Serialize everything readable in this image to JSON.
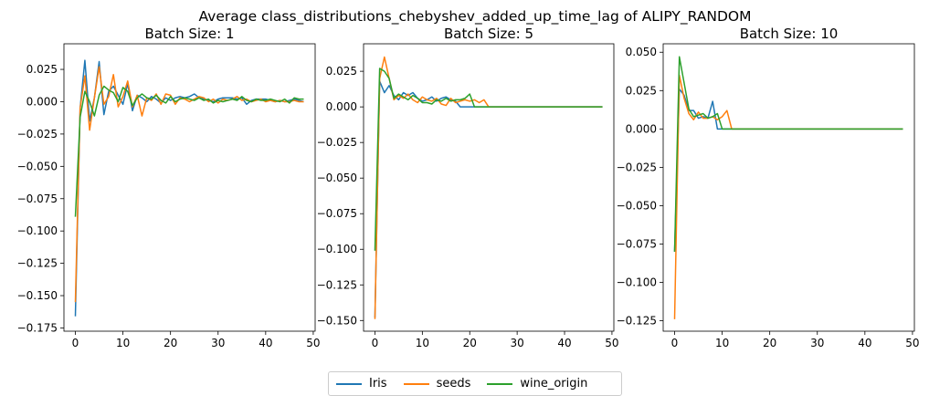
{
  "suptitle": "Average class_distributions_chebyshev_added_up_time_lag of ALIPY_RANDOM",
  "colors": {
    "Iris": "#1f77b4",
    "seeds": "#ff7f0e",
    "wine_origin": "#2ca02c"
  },
  "legend": {
    "placement": "bottom-center",
    "entries": [
      "Iris",
      "seeds",
      "wine_origin"
    ]
  },
  "chart_data": [
    {
      "type": "line",
      "title": "Batch Size: 1",
      "xlim": [
        -2.4,
        50.4
      ],
      "ylim": [
        -0.1775,
        0.0448
      ],
      "xticks": [
        0,
        10,
        20,
        30,
        40,
        50
      ],
      "yticks": [
        -0.175,
        -0.15,
        -0.125,
        -0.1,
        -0.075,
        -0.05,
        -0.025,
        0.0,
        0.025
      ],
      "ytick_labels": [
        "−0.175",
        "−0.150",
        "−0.125",
        "−0.100",
        "−0.075",
        "−0.050",
        "−0.025",
        "0.000",
        "0.025"
      ],
      "series": [
        {
          "name": "Iris",
          "x": [
            0,
            1,
            2,
            3,
            4,
            5,
            6,
            7,
            8,
            9,
            10,
            11,
            12,
            13,
            14,
            15,
            16,
            17,
            18,
            19,
            20,
            21,
            22,
            23,
            24,
            25,
            26,
            27,
            28,
            29,
            30,
            31,
            32,
            33,
            34,
            35,
            36,
            37,
            38,
            39,
            40,
            41,
            42,
            43,
            44,
            45,
            46,
            47,
            48
          ],
          "y": [
            -0.166,
            -0.005,
            0.032,
            -0.015,
            0.003,
            0.031,
            -0.01,
            0.008,
            0.012,
            0.005,
            -0.002,
            0.014,
            -0.007,
            0.005,
            0.003,
            0.0,
            0.004,
            0.002,
            -0.001,
            0.003,
            0.001,
            0.003,
            0.004,
            0.003,
            0.004,
            0.006,
            0.003,
            0.002,
            0.001,
            0.0,
            0.002,
            0.003,
            0.003,
            0.003,
            0.002,
            0.003,
            -0.002,
            0.001,
            0.002,
            0.002,
            0.002,
            0.001,
            0.0,
            0.001,
            0.0,
            0.001,
            0.002,
            0.001,
            0.0
          ]
        },
        {
          "name": "seeds",
          "x": [
            0,
            1,
            2,
            3,
            4,
            5,
            6,
            7,
            8,
            9,
            10,
            11,
            12,
            13,
            14,
            15,
            16,
            17,
            18,
            19,
            20,
            21,
            22,
            23,
            24,
            25,
            26,
            27,
            28,
            29,
            30,
            31,
            32,
            33,
            34,
            35,
            36,
            37,
            38,
            39,
            40,
            41,
            42,
            43,
            44,
            45,
            46,
            47,
            48
          ],
          "y": [
            -0.155,
            -0.005,
            0.02,
            -0.022,
            0.003,
            0.027,
            -0.002,
            0.004,
            0.021,
            -0.004,
            0.004,
            0.016,
            -0.004,
            0.005,
            -0.011,
            0.003,
            0.001,
            0.006,
            -0.002,
            0.006,
            0.005,
            -0.002,
            0.003,
            0.002,
            0.0,
            0.002,
            0.004,
            0.003,
            0.0,
            0.002,
            -0.001,
            0.002,
            0.001,
            0.002,
            0.004,
            0.001,
            0.002,
            0.0,
            0.001,
            0.002,
            0.0,
            0.001,
            0.0,
            0.001,
            0.0,
            0.0,
            0.001,
            0.0,
            0.0
          ]
        },
        {
          "name": "wine_origin",
          "x": [
            0,
            1,
            2,
            3,
            4,
            5,
            6,
            7,
            8,
            9,
            10,
            11,
            12,
            13,
            14,
            15,
            16,
            17,
            18,
            19,
            20,
            21,
            22,
            23,
            24,
            25,
            26,
            27,
            28,
            29,
            30,
            31,
            32,
            33,
            34,
            35,
            36,
            37,
            38,
            39,
            40,
            41,
            42,
            43,
            44,
            45,
            46,
            47,
            48
          ],
          "y": [
            -0.089,
            -0.012,
            0.008,
            0.0,
            -0.011,
            0.005,
            0.012,
            0.009,
            0.007,
            0.0,
            0.011,
            0.008,
            -0.003,
            0.003,
            0.006,
            0.003,
            0.002,
            0.005,
            0.001,
            -0.001,
            0.004,
            0.0,
            0.002,
            0.003,
            0.002,
            0.001,
            0.003,
            0.001,
            0.002,
            -0.001,
            0.001,
            0.0,
            0.001,
            0.002,
            0.001,
            0.004,
            0.001,
            0.0,
            0.002,
            0.001,
            0.001,
            0.002,
            0.001,
            0.0,
            0.002,
            -0.001,
            0.003,
            0.002,
            0.002
          ]
        }
      ]
    },
    {
      "type": "line",
      "title": "Batch Size: 5",
      "xlim": [
        -2.4,
        50.4
      ],
      "ylim": [
        -0.1575,
        0.0443
      ],
      "xticks": [
        0,
        10,
        20,
        30,
        40,
        50
      ],
      "yticks": [
        -0.15,
        -0.125,
        -0.1,
        -0.075,
        -0.05,
        -0.025,
        0.0,
        0.025
      ],
      "ytick_labels": [
        "−0.150",
        "−0.125",
        "−0.100",
        "−0.075",
        "−0.050",
        "−0.025",
        "0.000",
        "0.025"
      ],
      "series": [
        {
          "name": "Iris",
          "x": [
            0,
            1,
            2,
            3,
            4,
            5,
            6,
            7,
            8,
            9,
            10,
            11,
            12,
            13,
            14,
            15,
            16,
            17,
            18,
            19,
            20,
            21,
            22,
            23,
            24,
            25,
            26,
            27,
            28,
            29,
            30,
            31,
            32,
            33,
            34,
            35,
            36,
            37,
            38,
            39,
            40,
            41,
            42,
            43,
            44,
            45,
            46,
            47,
            48
          ],
          "y": [
            -0.148,
            0.018,
            0.01,
            0.015,
            0.008,
            0.005,
            0.01,
            0.008,
            0.01,
            0.006,
            0.004,
            0.005,
            0.007,
            0.004,
            0.006,
            0.007,
            0.005,
            0.004,
            0.0,
            0.0,
            0.0,
            0.0,
            0.0,
            0.0,
            0.0,
            0.0,
            0.0,
            0.0,
            0.0,
            0.0,
            0.0,
            0.0,
            0.0,
            0.0,
            0.0,
            0.0,
            0.0,
            0.0,
            0.0,
            0.0,
            0.0,
            0.0,
            0.0,
            0.0,
            0.0,
            0.0,
            0.0,
            0.0,
            0.0
          ]
        },
        {
          "name": "seeds",
          "x": [
            0,
            1,
            2,
            3,
            4,
            5,
            6,
            7,
            8,
            9,
            10,
            11,
            12,
            13,
            14,
            15,
            16,
            17,
            18,
            19,
            20,
            21,
            22,
            23,
            24,
            25,
            26,
            27,
            28,
            29,
            30,
            31,
            32,
            33,
            34,
            35,
            36,
            37,
            38,
            39,
            40,
            41,
            42,
            43,
            44,
            45,
            46,
            47,
            48
          ],
          "y": [
            -0.149,
            0.02,
            0.035,
            0.02,
            0.005,
            0.008,
            0.006,
            0.009,
            0.005,
            0.003,
            0.007,
            0.005,
            0.004,
            0.006,
            0.002,
            0.001,
            0.006,
            0.003,
            0.004,
            0.005,
            0.004,
            0.005,
            0.003,
            0.005,
            0.0,
            0.0,
            0.0,
            0.0,
            0.0,
            0.0,
            0.0,
            0.0,
            0.0,
            0.0,
            0.0,
            0.0,
            0.0,
            0.0,
            0.0,
            0.0,
            0.0,
            0.0,
            0.0,
            0.0,
            0.0,
            0.0,
            0.0,
            0.0,
            0.0
          ]
        },
        {
          "name": "wine_origin",
          "x": [
            0,
            1,
            2,
            3,
            4,
            5,
            6,
            7,
            8,
            9,
            10,
            11,
            12,
            13,
            14,
            15,
            16,
            17,
            18,
            19,
            20,
            21,
            22,
            23,
            24,
            25,
            26,
            27,
            28,
            29,
            30,
            31,
            32,
            33,
            34,
            35,
            36,
            37,
            38,
            39,
            40,
            41,
            42,
            43,
            44,
            45,
            46,
            47,
            48
          ],
          "y": [
            -0.101,
            0.027,
            0.025,
            0.02,
            0.006,
            0.009,
            0.007,
            0.005,
            0.008,
            0.006,
            0.003,
            0.003,
            0.002,
            0.005,
            0.004,
            0.006,
            0.004,
            0.005,
            0.005,
            0.006,
            0.009,
            0.0,
            0.0,
            0.0,
            0.0,
            0.0,
            0.0,
            0.0,
            0.0,
            0.0,
            0.0,
            0.0,
            0.0,
            0.0,
            0.0,
            0.0,
            0.0,
            0.0,
            0.0,
            0.0,
            0.0,
            0.0,
            0.0,
            0.0,
            0.0,
            0.0,
            0.0,
            0.0,
            0.0
          ]
        }
      ]
    },
    {
      "type": "line",
      "title": "Batch Size: 10",
      "xlim": [
        -2.4,
        50.4
      ],
      "ylim": [
        -0.1318,
        0.0555
      ],
      "xticks": [
        0,
        10,
        20,
        30,
        40,
        50
      ],
      "yticks": [
        -0.125,
        -0.1,
        -0.075,
        -0.05,
        -0.025,
        0.0,
        0.025,
        0.05
      ],
      "ytick_labels": [
        "−0.125",
        "−0.100",
        "−0.075",
        "−0.050",
        "−0.025",
        "0.000",
        "0.025",
        "0.050"
      ],
      "series": [
        {
          "name": "Iris",
          "x": [
            0,
            1,
            2,
            3,
            4,
            5,
            6,
            7,
            8,
            9,
            10,
            11,
            12,
            13,
            14,
            15,
            16,
            17,
            18,
            19,
            20,
            21,
            22,
            23,
            24,
            25,
            26,
            27,
            28,
            29,
            30,
            31,
            32,
            33,
            34,
            35,
            36,
            37,
            38,
            39,
            40,
            41,
            42,
            43,
            44,
            45,
            46,
            47,
            48
          ],
          "y": [
            -0.08,
            0.026,
            0.022,
            0.012,
            0.012,
            0.007,
            0.008,
            0.007,
            0.018,
            0.0,
            0.0,
            0.0,
            0.0,
            0.0,
            0.0,
            0.0,
            0.0,
            0.0,
            0.0,
            0.0,
            0.0,
            0.0,
            0.0,
            0.0,
            0.0,
            0.0,
            0.0,
            0.0,
            0.0,
            0.0,
            0.0,
            0.0,
            0.0,
            0.0,
            0.0,
            0.0,
            0.0,
            0.0,
            0.0,
            0.0,
            0.0,
            0.0,
            0.0,
            0.0,
            0.0,
            0.0,
            0.0,
            0.0,
            0.0
          ]
        },
        {
          "name": "seeds",
          "x": [
            0,
            1,
            2,
            3,
            4,
            5,
            6,
            7,
            8,
            9,
            10,
            11,
            12,
            13,
            14,
            15,
            16,
            17,
            18,
            19,
            20,
            21,
            22,
            23,
            24,
            25,
            26,
            27,
            28,
            29,
            30,
            31,
            32,
            33,
            34,
            35,
            36,
            37,
            38,
            39,
            40,
            41,
            42,
            43,
            44,
            45,
            46,
            47,
            48
          ],
          "y": [
            -0.124,
            0.035,
            0.02,
            0.01,
            0.006,
            0.011,
            0.007,
            0.007,
            0.008,
            0.006,
            0.008,
            0.012,
            0.0,
            0.0,
            0.0,
            0.0,
            0.0,
            0.0,
            0.0,
            0.0,
            0.0,
            0.0,
            0.0,
            0.0,
            0.0,
            0.0,
            0.0,
            0.0,
            0.0,
            0.0,
            0.0,
            0.0,
            0.0,
            0.0,
            0.0,
            0.0,
            0.0,
            0.0,
            0.0,
            0.0,
            0.0,
            0.0,
            0.0,
            0.0,
            0.0,
            0.0,
            0.0,
            0.0,
            0.0
          ]
        },
        {
          "name": "wine_origin",
          "x": [
            0,
            1,
            2,
            3,
            4,
            5,
            6,
            7,
            8,
            9,
            10,
            11,
            12,
            13,
            14,
            15,
            16,
            17,
            18,
            19,
            20,
            21,
            22,
            23,
            24,
            25,
            26,
            27,
            28,
            29,
            30,
            31,
            32,
            33,
            34,
            35,
            36,
            37,
            38,
            39,
            40,
            41,
            42,
            43,
            44,
            45,
            46,
            47,
            48
          ],
          "y": [
            -0.08,
            0.047,
            0.03,
            0.013,
            0.008,
            0.009,
            0.01,
            0.007,
            0.008,
            0.01,
            0.0,
            0.0,
            0.0,
            0.0,
            0.0,
            0.0,
            0.0,
            0.0,
            0.0,
            0.0,
            0.0,
            0.0,
            0.0,
            0.0,
            0.0,
            0.0,
            0.0,
            0.0,
            0.0,
            0.0,
            0.0,
            0.0,
            0.0,
            0.0,
            0.0,
            0.0,
            0.0,
            0.0,
            0.0,
            0.0,
            0.0,
            0.0,
            0.0,
            0.0,
            0.0,
            0.0,
            0.0,
            0.0,
            0.0
          ]
        }
      ]
    }
  ]
}
